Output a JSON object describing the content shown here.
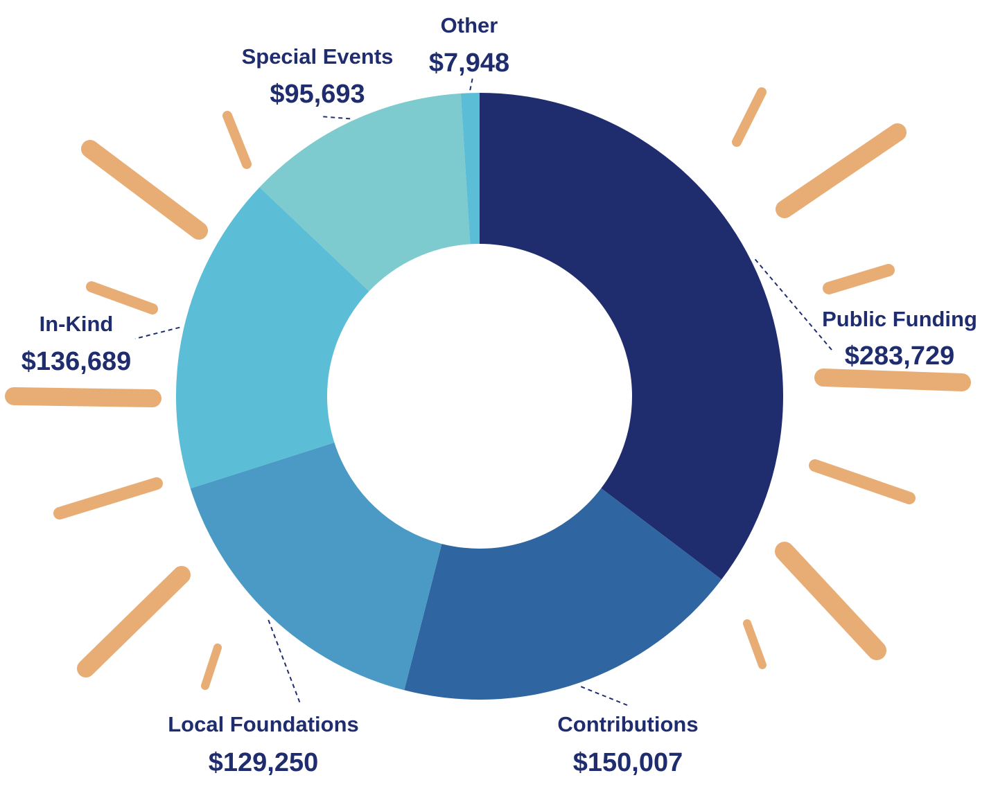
{
  "chart_data": {
    "type": "pie",
    "variant": "donut",
    "start_angle_deg": 0,
    "direction": "clockwise",
    "slices": [
      {
        "label": "Public Funding",
        "value": 283729,
        "display": "$283,729",
        "color": "#1f2d6e"
      },
      {
        "label": "Contributions",
        "value": 150007,
        "display": "$150,007",
        "color": "#2f65a0"
      },
      {
        "label": "Local Foundations",
        "value": 129250,
        "display": "$129,250",
        "color": "#4a9ac5"
      },
      {
        "label": "In-Kind",
        "value": 136689,
        "display": "$136,689",
        "color": "#5bbdd6"
      },
      {
        "label": "Special Events",
        "value": 95693,
        "display": "$95,693",
        "color": "#7ecbcf"
      },
      {
        "label": "Other",
        "value": 7948,
        "display": "$7,948",
        "color": "#5bbdd6"
      }
    ]
  },
  "decoration": {
    "ray_color": "#e8ad75"
  }
}
